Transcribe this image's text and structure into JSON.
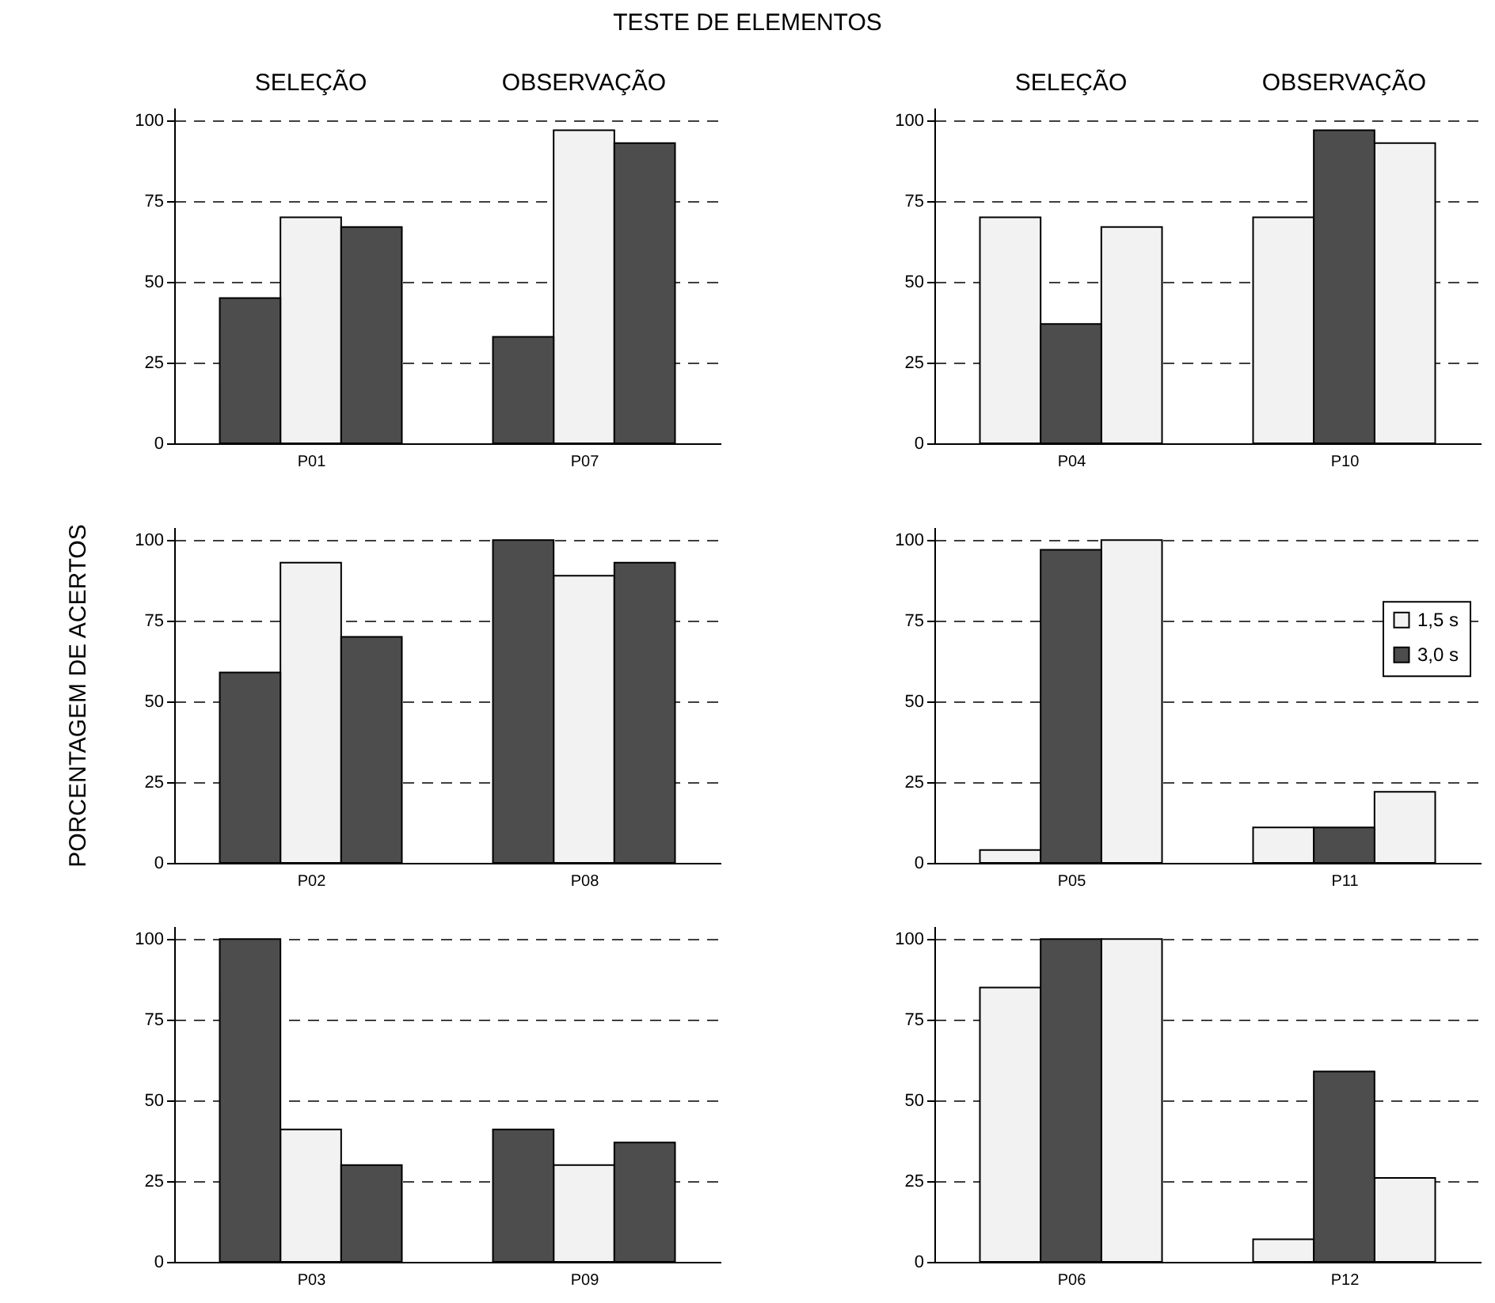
{
  "chart_data": [
    {
      "type": "bar",
      "title": "TESTE DE ELEMENTOS",
      "annotations": [
        "SELEÇÃO",
        "OBSERVAÇÃO"
      ],
      "categories": [
        null,
        "P01",
        null,
        null,
        "P07",
        null
      ],
      "series": [
        {
          "color": "#f2f2f2",
          "values": [
            null,
            70,
            null,
            null,
            97,
            null
          ]
        },
        {
          "color": "#4d4d4d",
          "values": [
            45,
            null,
            67,
            33,
            null,
            93
          ]
        }
      ],
      "ylim": [
        0,
        104
      ],
      "yticks": [
        0,
        25,
        50,
        75,
        100
      ],
      "grid": "y"
    },
    {
      "type": "bar",
      "annotations": [
        "SELEÇÃO",
        "OBSERVAÇÃO"
      ],
      "categories": [
        null,
        "P04",
        null,
        null,
        "P10",
        null
      ],
      "series": [
        {
          "color": "#f2f2f2",
          "values": [
            70,
            null,
            67,
            70,
            null,
            93
          ]
        },
        {
          "color": "#4d4d4d",
          "values": [
            null,
            37,
            null,
            null,
            97,
            null
          ]
        }
      ],
      "ylim": [
        0,
        104
      ],
      "yticks": [
        0,
        25,
        50,
        75,
        100
      ],
      "grid": "y"
    },
    {
      "type": "bar",
      "ylabel": "PORCENTAGEM DE ACERTOS",
      "categories": [
        null,
        "P02",
        null,
        null,
        "P08",
        null
      ],
      "series": [
        {
          "color": "#f2f2f2",
          "values": [
            null,
            93,
            null,
            null,
            89,
            null
          ]
        },
        {
          "color": "#4d4d4d",
          "values": [
            59,
            null,
            70,
            100,
            null,
            93
          ]
        }
      ],
      "ylim": [
        0,
        104
      ],
      "yticks": [
        0,
        25,
        50,
        75,
        100
      ],
      "grid": "y"
    },
    {
      "type": "bar",
      "categories": [
        null,
        "P05",
        null,
        null,
        "P11",
        null
      ],
      "series": [
        {
          "name": "1,5 s",
          "color": "#f2f2f2",
          "values": [
            4,
            null,
            100,
            11,
            null,
            22
          ]
        },
        {
          "name": "3,0 s",
          "color": "#4d4d4d",
          "values": [
            null,
            97,
            null,
            null,
            11,
            null
          ]
        }
      ],
      "ylim": [
        0,
        104
      ],
      "yticks": [
        0,
        25,
        50,
        75,
        100
      ],
      "grid": "y",
      "legend": "right"
    },
    {
      "type": "bar",
      "categories": [
        null,
        "P03",
        null,
        null,
        "P09",
        null
      ],
      "series": [
        {
          "color": "#f2f2f2",
          "values": [
            null,
            41,
            null,
            null,
            30,
            null
          ]
        },
        {
          "color": "#4d4d4d",
          "values": [
            100,
            null,
            30,
            41,
            null,
            37
          ]
        }
      ],
      "ylim": [
        0,
        104
      ],
      "yticks": [
        0,
        25,
        50,
        75,
        100
      ],
      "grid": "y"
    },
    {
      "type": "bar",
      "categories": [
        null,
        "P06",
        null,
        null,
        "P12",
        null
      ],
      "series": [
        {
          "color": "#f2f2f2",
          "values": [
            85,
            null,
            100,
            7,
            null,
            26
          ]
        },
        {
          "color": "#4d4d4d",
          "values": [
            null,
            100,
            null,
            null,
            59,
            null
          ]
        }
      ],
      "ylim": [
        0,
        104
      ],
      "yticks": [
        0,
        25,
        50,
        75,
        100
      ],
      "grid": "y"
    }
  ]
}
